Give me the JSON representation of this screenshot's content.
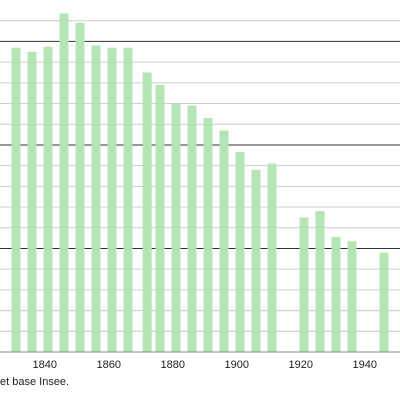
{
  "chart_data": {
    "type": "bar",
    "title": "",
    "xlabel": "",
    "ylabel": "",
    "x_ticks": [
      "1840",
      "1860",
      "1880",
      "1900",
      "1920",
      "1940"
    ],
    "xlim": [
      1826,
      1951
    ],
    "ylim": [
      0,
      34
    ],
    "grid": true,
    "major_grid_values": [
      10,
      20,
      30
    ],
    "minor_grid_values": [
      2,
      4,
      6,
      8,
      12,
      14,
      16,
      18,
      22,
      24,
      26,
      28,
      32
    ],
    "series": [
      {
        "x": [
          1831,
          1836,
          1841,
          1846,
          1851,
          1856,
          1861,
          1866,
          1872,
          1876,
          1881,
          1886,
          1891,
          1896,
          1901,
          1906,
          1911,
          1921,
          1926,
          1931,
          1936,
          1946
        ],
        "values": [
          29.4,
          29.0,
          29.5,
          32.7,
          31.8,
          29.6,
          29.4,
          29.4,
          27.0,
          25.8,
          24.0,
          23.8,
          22.6,
          21.4,
          19.3,
          17.6,
          18.2,
          13.0,
          13.6,
          11.1,
          10.7,
          9.6
        ]
      }
    ],
    "colors": {
      "bar": "#b3e6b3",
      "major_grid": "#333333",
      "minor_grid": "#cccccc",
      "axis": "#888888"
    }
  },
  "source_note": "et base Insee."
}
